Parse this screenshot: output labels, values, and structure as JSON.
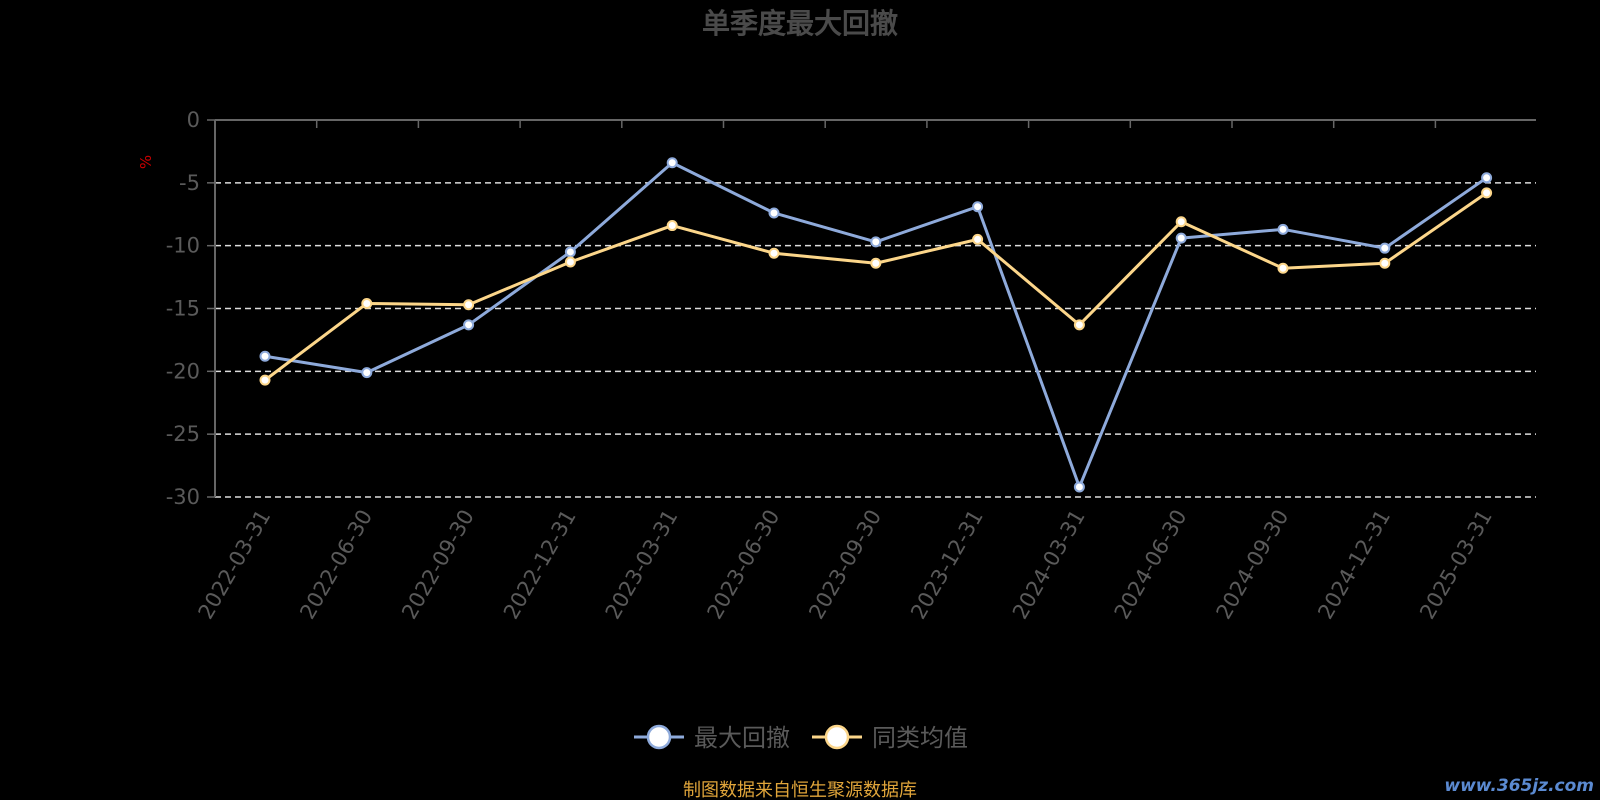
{
  "chart_data": {
    "type": "line",
    "title": "单季度最大回撤",
    "ylabel": "%",
    "ylim": [
      -30,
      0
    ],
    "y_ticks": [
      0,
      -5,
      -10,
      -15,
      -20,
      -25,
      -30
    ],
    "grid": true,
    "legend_position": "bottom-center",
    "categories": [
      "2022-03-31",
      "2022-06-30",
      "2022-09-30",
      "2022-12-31",
      "2023-03-31",
      "2023-06-30",
      "2023-09-30",
      "2023-12-31",
      "2024-03-31",
      "2024-06-30",
      "2024-09-30",
      "2024-12-31",
      "2025-03-31"
    ],
    "series": [
      {
        "name": "最大回撤",
        "color": "#8eaadb",
        "values": [
          -18.8,
          -20.1,
          -16.3,
          -10.5,
          -3.4,
          -7.4,
          -9.7,
          -6.9,
          -29.2,
          -9.4,
          -8.7,
          -10.2,
          -4.6
        ]
      },
      {
        "name": "同类均值",
        "color": "#fcd68a",
        "values": [
          -20.7,
          -14.6,
          -14.7,
          -11.3,
          -8.4,
          -10.6,
          -11.4,
          -9.5,
          -16.3,
          -8.1,
          -11.8,
          -11.4,
          -5.8
        ]
      }
    ]
  },
  "footer": {
    "source": "制图数据来自恒生聚源数据库",
    "watermark": "www.365jz.com"
  },
  "colors": {
    "background": "#000000",
    "axis": "#666666",
    "grid": "#dddddd",
    "title": "#4a4a4a",
    "tick_label": "#5a5a5a",
    "ylabel": "#cc0000",
    "source": "#e0a53a",
    "watermark": "#5b8ad1"
  }
}
